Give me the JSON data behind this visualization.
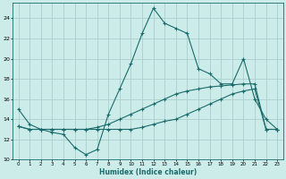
{
  "xlabel": "Humidex (Indice chaleur)",
  "background_color": "#ccecea",
  "grid_color": "#aacfcd",
  "line_color": "#1a6b6b",
  "xlim": [
    -0.5,
    23.5
  ],
  "ylim": [
    10,
    25.5
  ],
  "xticks": [
    0,
    1,
    2,
    3,
    4,
    5,
    6,
    7,
    8,
    9,
    10,
    11,
    12,
    13,
    14,
    15,
    16,
    17,
    18,
    19,
    20,
    21,
    22,
    23
  ],
  "yticks": [
    10,
    12,
    14,
    16,
    18,
    20,
    22,
    24
  ],
  "series1_x": [
    0,
    1,
    2,
    3,
    4,
    5,
    6,
    7,
    8,
    9,
    10,
    11,
    12,
    13,
    14,
    15,
    16,
    17,
    18,
    19,
    20,
    21,
    22,
    23
  ],
  "series1_y": [
    15.0,
    13.5,
    13.0,
    12.7,
    12.5,
    11.2,
    10.5,
    11.0,
    14.5,
    17.0,
    19.5,
    22.5,
    25.0,
    23.5,
    23.0,
    22.5,
    19.0,
    18.5,
    17.5,
    17.5,
    20.0,
    16.0,
    14.0,
    13.0
  ],
  "series2_x": [
    0,
    1,
    2,
    3,
    4,
    5,
    6,
    7,
    8,
    9,
    10,
    11,
    12,
    13,
    14,
    15,
    16,
    17,
    18,
    19,
    20,
    21,
    22,
    23
  ],
  "series2_y": [
    13.3,
    13.0,
    13.0,
    13.0,
    13.0,
    13.0,
    13.0,
    13.2,
    13.5,
    14.0,
    14.5,
    15.0,
    15.5,
    16.0,
    16.5,
    16.8,
    17.0,
    17.2,
    17.3,
    17.4,
    17.5,
    17.5,
    13.0,
    13.0
  ],
  "series3_x": [
    0,
    1,
    2,
    3,
    4,
    5,
    6,
    7,
    8,
    9,
    10,
    11,
    12,
    13,
    14,
    15,
    16,
    17,
    18,
    19,
    20,
    21,
    22,
    23
  ],
  "series3_y": [
    13.3,
    13.0,
    13.0,
    13.0,
    13.0,
    13.0,
    13.0,
    13.0,
    13.0,
    13.0,
    13.0,
    13.2,
    13.5,
    13.8,
    14.0,
    14.5,
    15.0,
    15.5,
    16.0,
    16.5,
    16.8,
    17.0,
    13.0,
    13.0
  ],
  "marker_size": 1.5,
  "linewidth": 0.8
}
